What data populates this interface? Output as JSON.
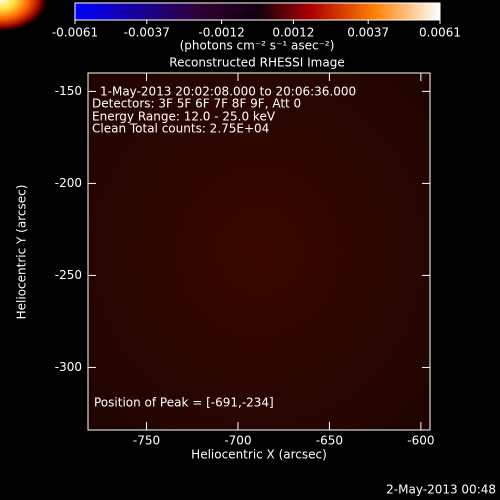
{
  "chart_data": {
    "type": "image",
    "title": "Reconstructed RHESSI Image",
    "colorbar": {
      "lim": [
        -0.0061,
        0.0061
      ],
      "ticks": [
        -0.0061,
        -0.0037,
        -0.0012,
        0.0012,
        0.0037,
        0.0061
      ],
      "label": "(photons cm⁻² s⁻¹ asec⁻²)"
    },
    "x_label": "Heliocentric X (arcsec)",
    "y_label": "Heliocentric Y (arcsec)",
    "xlim": [
      -782,
      -595
    ],
    "xticks": [
      -750,
      -700,
      -650,
      -600
    ],
    "ylim": [
      -334,
      -140
    ],
    "yticks": [
      -150,
      -200,
      -250,
      -300
    ],
    "annotations": [
      "1-May-2013 20:02:08.000  to 20:06:36.000",
      "Detectors: 3F 5F 6F 7F 8F 9F, Att 0",
      "Energy Range: 12.0 - 25.0 keV",
      "Clean     Total counts: 2.75E+04"
    ],
    "peak_label": "Position of Peak = [-691,-234]",
    "peak": {
      "x": -691,
      "y": -234
    },
    "footer": "2-May-2013 00:48"
  }
}
